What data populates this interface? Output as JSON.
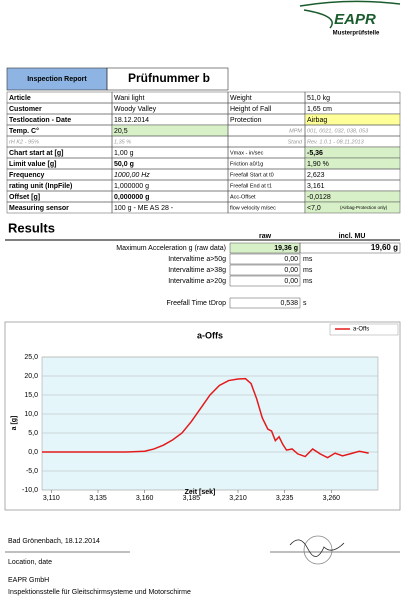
{
  "header": {
    "logo": "EAPR",
    "subtitle": "Musterprüfstelle"
  },
  "report": {
    "label": "Inspection Report",
    "number": "Prüfnummer b"
  },
  "table": {
    "rows": [
      [
        "Article",
        "Wani light",
        "Weight",
        "51,0 kg"
      ],
      [
        "Customer",
        "Woody Valley",
        "Height of Fall",
        "1,65 cm"
      ],
      [
        "Testlocation - Date",
        "18.12.2014",
        "Protection",
        "Airbag"
      ],
      [
        "Temp. C°",
        "20,5",
        "MPM",
        "001, 0021, 032, 038, 053"
      ],
      [
        "rH K2 - 95%",
        "1,35 %",
        "Stand",
        "Rev. 1.0.1 - 08.11.2013"
      ],
      [
        "Chart start at [g]",
        "1,00 g",
        "Vmax - in/sec",
        "-5,36"
      ],
      [
        "Limit value [g]",
        "50,0 g",
        "Friction a0/1g",
        "1,90 %"
      ],
      [
        "Frequency",
        "1000,00 Hz",
        "Freefall Start at t0",
        "2,623"
      ],
      [
        "rating unit (InpFile)",
        "1,000000 g",
        "Freefall End at t1",
        "3,161"
      ],
      [
        "Offset [g]",
        "0,000000 g",
        "Acc-Offset",
        "-0,0128"
      ],
      [
        "Measuring sensor",
        "100 g - ME AS 28 -",
        "flow velocity m/sec",
        "<7,0",
        "(Airbag-Protection only)"
      ]
    ]
  },
  "results": {
    "title": "Results",
    "columns": [
      "raw",
      "incl. MU"
    ],
    "rows": [
      [
        "Maximum Acceleration g (raw data)",
        "19,36 g",
        "19,60 g"
      ],
      [
        "Intervaltime a>50g",
        "0,00",
        "ms"
      ],
      [
        "Intervaltime a>38g",
        "0,00",
        "ms"
      ],
      [
        "Intervaltime a>20g",
        "0,00",
        "ms"
      ],
      [
        "Freefall Time tDrop",
        "0,538",
        "s"
      ]
    ]
  },
  "chart_data": {
    "type": "line",
    "title": "a-Offs",
    "x_label": "Zeit [sek]",
    "y_label": "a [g]",
    "x": [
      3.105,
      3.12,
      3.135,
      3.15,
      3.16,
      3.165,
      3.17,
      3.175,
      3.18,
      3.185,
      3.19,
      3.195,
      3.2,
      3.205,
      3.21,
      3.214,
      3.217,
      3.22,
      3.223,
      3.226,
      3.228,
      3.23,
      3.232,
      3.234,
      3.236,
      3.239,
      3.242,
      3.246,
      3.25,
      3.254,
      3.258,
      3.262,
      3.266,
      3.27,
      3.275,
      3.28
    ],
    "series": [
      {
        "name": "a-Offs",
        "color": "#e31a1c",
        "values": [
          0,
          0,
          0,
          0,
          0.2,
          0.8,
          1.8,
          3.2,
          5,
          8,
          11.5,
          15,
          17.5,
          18.8,
          19.2,
          19.3,
          18,
          14,
          9,
          6,
          5.5,
          3,
          4,
          2,
          0.5,
          0.8,
          -0.5,
          -1.2,
          0.8,
          -0.5,
          -1.5,
          -0.3,
          -1,
          -0.5,
          0.2,
          -0.3
        ]
      }
    ],
    "xlim": [
      3.105,
      3.285
    ],
    "ylim": [
      -10,
      25
    ],
    "xticks": [
      {
        "value": 3.11,
        "label": "3,110"
      },
      {
        "value": 3.135,
        "label": "3,135"
      },
      {
        "value": 3.16,
        "label": "3,160"
      },
      {
        "value": 3.185,
        "label": "3,185"
      },
      {
        "value": 3.21,
        "label": "3,210"
      },
      {
        "value": 3.235,
        "label": "3,235"
      },
      {
        "value": 3.26,
        "label": "3,260"
      }
    ],
    "yticks": [
      {
        "value": -10,
        "label": "-10,0"
      },
      {
        "value": -5,
        "label": "-5,0"
      },
      {
        "value": 0,
        "label": "0,0"
      },
      {
        "value": 5,
        "label": "5,0"
      },
      {
        "value": 10,
        "label": "10,0"
      },
      {
        "value": 15,
        "label": "15,0"
      },
      {
        "value": 20,
        "label": "20,0"
      },
      {
        "value": 25,
        "label": "25,0"
      }
    ],
    "grid": true,
    "legend": "top-right"
  },
  "footer": {
    "place_date": "Bad Grönenbach, 18.12.2014",
    "place_date_label": "Location, date",
    "company": "EAPR GmbH",
    "description": "Inspektionsstelle für Gleitschirmsysteme und Motorschirme"
  }
}
